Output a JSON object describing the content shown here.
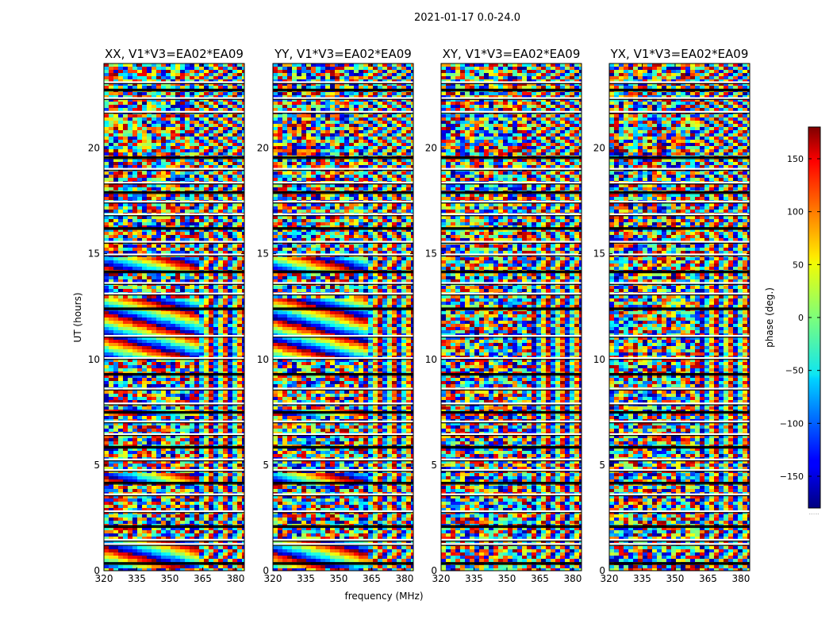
{
  "figure_title": "2021-01-17 0.0-24.0",
  "chart_data": {
    "type": "heatmap",
    "suptitle": "2021-01-17 0.0-24.0",
    "xlabel": "frequency (MHz)",
    "ylabel": "UT (hours)",
    "xlim": [
      320,
      384
    ],
    "ylim": [
      0,
      24
    ],
    "xticks": [
      320,
      335,
      350,
      365,
      380
    ],
    "yticks": [
      0,
      5,
      10,
      15,
      20
    ],
    "colorbar": {
      "label": "phase (deg.)",
      "range": [
        -180,
        180
      ],
      "ticks": [
        150,
        100,
        50,
        0,
        -50,
        -100,
        -150
      ],
      "tick_labels": [
        "150",
        "100",
        "50",
        "0",
        "−50",
        "−100",
        "−150"
      ],
      "colormap": "jet"
    },
    "panels": [
      {
        "title": "XX, V1*V3=EA02*EA09",
        "pol": "XX"
      },
      {
        "title": "YY, V1*V3=EA02*EA09",
        "pol": "YY"
      },
      {
        "title": "XY, V1*V3=EA02*EA09",
        "pol": "XY"
      },
      {
        "title": "YX, V1*V3=EA02*EA09",
        "pol": "YX"
      }
    ],
    "flagged_ut_hours": [
      0.35,
      1.25,
      1.45,
      2.1,
      2.8,
      3.6,
      4.15,
      4.75,
      5.25,
      5.85,
      6.45,
      7.05,
      7.5,
      7.9,
      8.6,
      9.3,
      10.05,
      11.1,
      12.4,
      13.1,
      13.6,
      14.15,
      14.95,
      15.55,
      16.2,
      16.85,
      17.45,
      17.9,
      18.35,
      19.0,
      19.55,
      21.7,
      22.35,
      22.75,
      23.1
    ],
    "coherent_phase_bands_ut_hours": [
      [
        0.05,
        1.5
      ],
      [
        4.2,
        4.6
      ],
      [
        7.3,
        7.6
      ],
      [
        10.0,
        12.9
      ],
      [
        14.1,
        14.8
      ]
    ],
    "colorbar_footer": "......"
  }
}
